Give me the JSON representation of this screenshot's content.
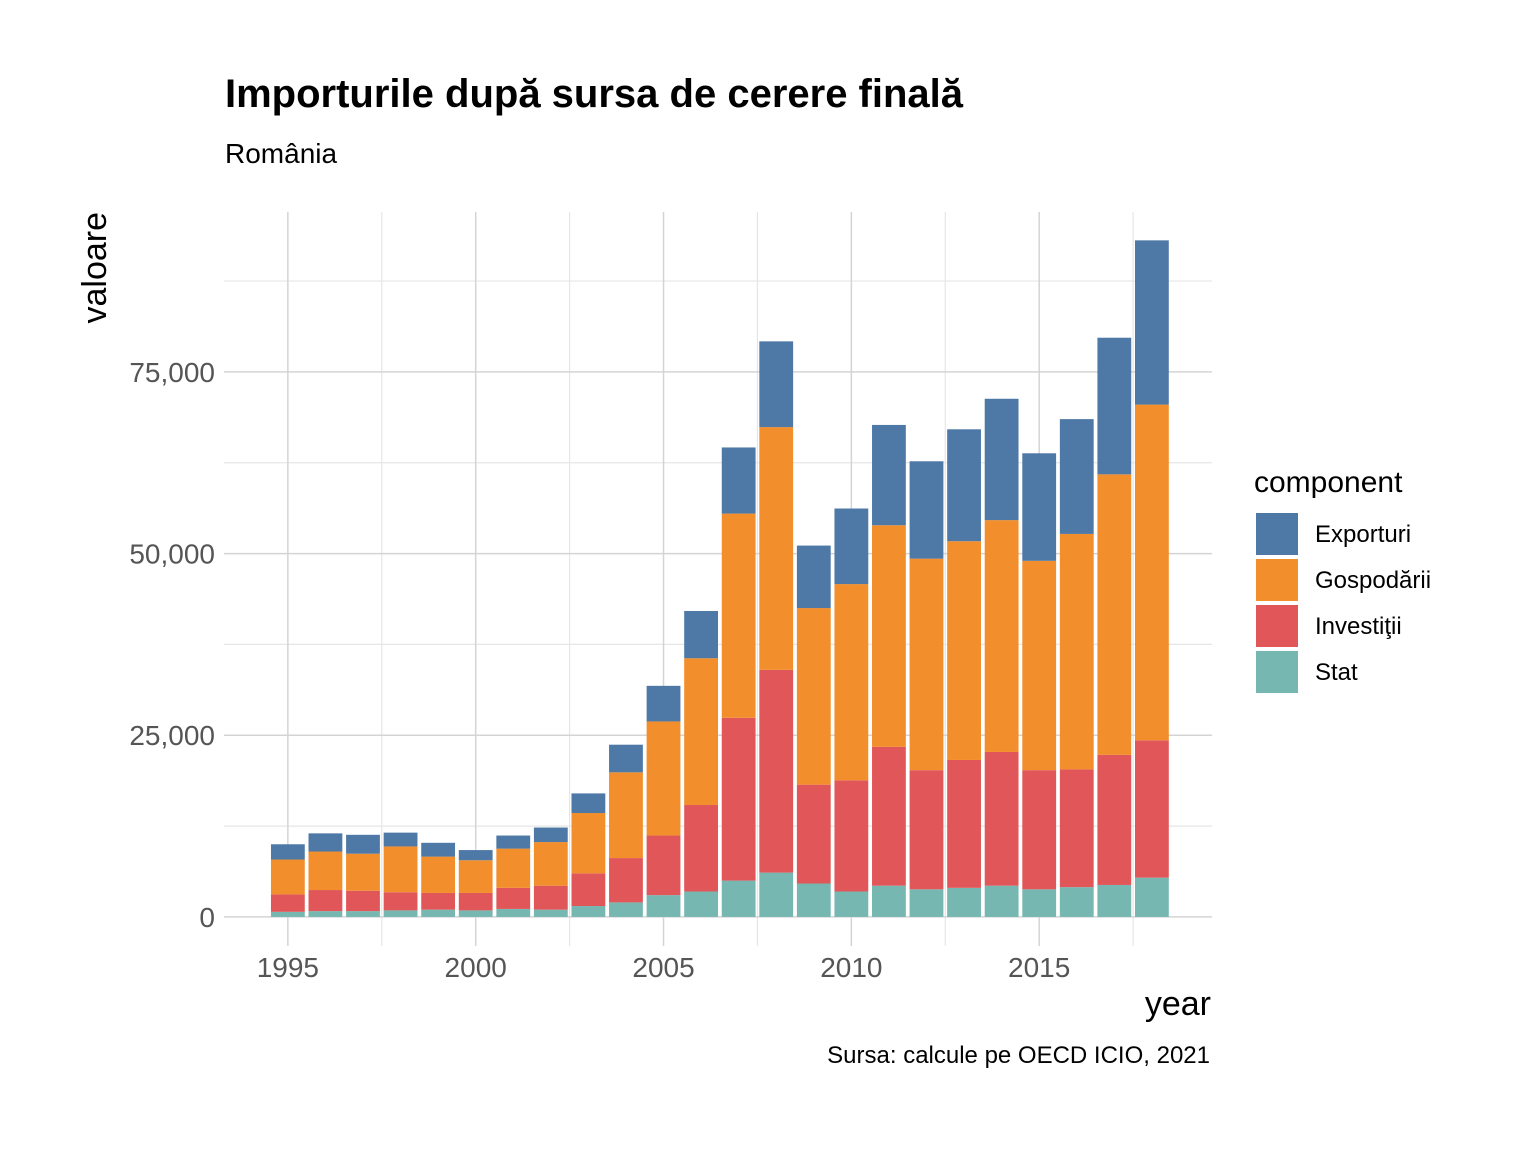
{
  "title": "Importurile după sursa de cerere finală",
  "subtitle": "România",
  "caption": "Sursa: calcule pe OECD ICIO, 2021",
  "chart_data": {
    "type": "bar",
    "stacked": true,
    "xlabel": "year",
    "ylabel": "valoare",
    "ylim": [
      -4000,
      97000
    ],
    "xlim": [
      1993.3,
      2019.6
    ],
    "yticks": [
      0,
      25000,
      50000,
      75000
    ],
    "ytick_labels": [
      "0",
      "25,000",
      "50,000",
      "75,000"
    ],
    "xticks": [
      1995,
      2000,
      2005,
      2010,
      2015
    ],
    "xtick_labels": [
      "1995",
      "2000",
      "2005",
      "2010",
      "2015"
    ],
    "grid": true,
    "legend": {
      "title": "component",
      "position": "right"
    },
    "x": [
      1995,
      1996,
      1997,
      1998,
      1999,
      2000,
      2001,
      2002,
      2003,
      2004,
      2005,
      2006,
      2007,
      2008,
      2009,
      2010,
      2011,
      2012,
      2013,
      2014,
      2015,
      2016,
      2017,
      2018
    ],
    "series": [
      {
        "name": "Stat",
        "color": "#76b7b2",
        "values": [
          700,
          800,
          800,
          900,
          1000,
          900,
          1100,
          1000,
          1500,
          2000,
          3000,
          3500,
          5000,
          6100,
          4600,
          3500,
          4300,
          3800,
          4000,
          4300,
          3800,
          4100,
          4400,
          5400
        ]
      },
      {
        "name": "Investiţii",
        "color": "#e15759",
        "values": [
          2400,
          2900,
          2800,
          2500,
          2300,
          2400,
          2900,
          3300,
          4500,
          6100,
          8200,
          11900,
          22400,
          27900,
          13600,
          15300,
          19100,
          16400,
          17600,
          18400,
          16400,
          16200,
          17900,
          18900
        ]
      },
      {
        "name": "Gospodării",
        "color": "#f28e2b",
        "values": [
          4800,
          5300,
          5100,
          6300,
          5000,
          4500,
          5400,
          6000,
          8300,
          11800,
          15700,
          20200,
          28100,
          33400,
          24300,
          27000,
          30500,
          29100,
          30100,
          31900,
          28800,
          32400,
          38600,
          46200
        ]
      },
      {
        "name": "Exporturi",
        "color": "#4e79a7",
        "values": [
          2100,
          2500,
          2600,
          1900,
          1900,
          1400,
          1800,
          2000,
          2700,
          3800,
          4900,
          6500,
          9100,
          11800,
          8600,
          10400,
          13800,
          13400,
          15400,
          16700,
          14800,
          15800,
          18800,
          22600
        ]
      }
    ]
  }
}
